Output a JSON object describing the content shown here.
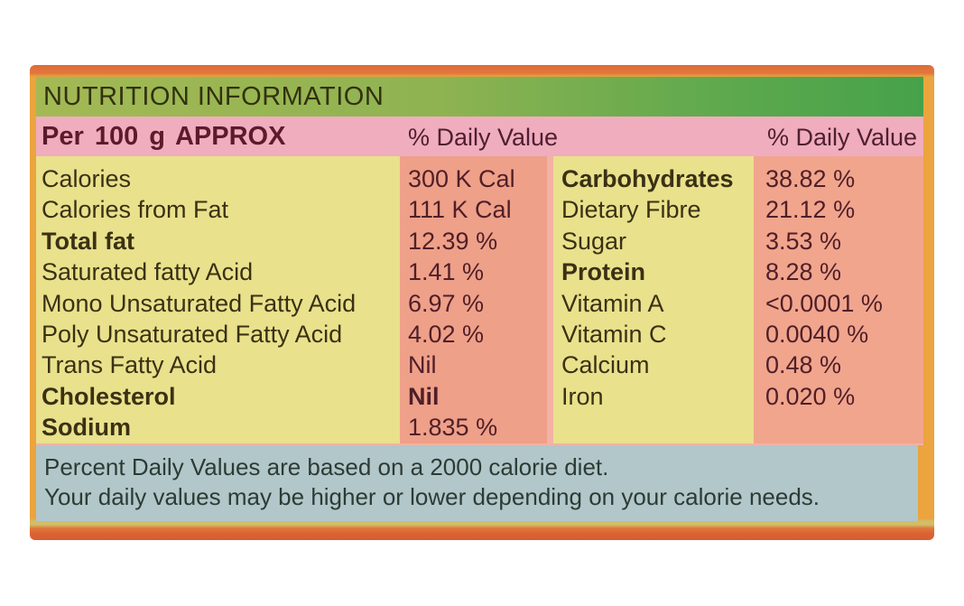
{
  "label": {
    "title": "NUTRITION INFORMATION",
    "serving": "Per 100 g APPROX",
    "daily_value_header_left": "% Daily Value",
    "daily_value_header_right": "% Daily Value",
    "left_rows": [
      {
        "name": "Calories",
        "value": "300 K Cal",
        "bold": false,
        "value_bold": false
      },
      {
        "name": "Calories from Fat",
        "value": "111 K Cal",
        "bold": false,
        "value_bold": false
      },
      {
        "name": "Total fat",
        "value": "12.39 %",
        "bold": true,
        "value_bold": false
      },
      {
        "name": "Saturated fatty Acid",
        "value": "1.41 %",
        "bold": false,
        "value_bold": false
      },
      {
        "name": "Mono Unsaturated Fatty Acid",
        "value": "6.97 %",
        "bold": false,
        "value_bold": false
      },
      {
        "name": "Poly Unsaturated Fatty Acid",
        "value": "4.02 %",
        "bold": false,
        "value_bold": false
      },
      {
        "name": "Trans Fatty Acid",
        "value": "Nil",
        "bold": false,
        "value_bold": false
      },
      {
        "name": "Cholesterol",
        "value": "Nil",
        "bold": true,
        "value_bold": true
      },
      {
        "name": "Sodium",
        "value": "1.835 %",
        "bold": true,
        "value_bold": false
      }
    ],
    "right_rows": [
      {
        "name": "Carbohydrates",
        "value": "38.82 %",
        "bold": true,
        "value_bold": false
      },
      {
        "name": "Dietary Fibre",
        "value": "21.12 %",
        "bold": false,
        "value_bold": false
      },
      {
        "name": "Sugar",
        "value": "3.53 %",
        "bold": false,
        "value_bold": false
      },
      {
        "name": "Protein",
        "value": "8.28 %",
        "bold": true,
        "value_bold": false
      },
      {
        "name": "Vitamin A",
        "value": "<0.0001 %",
        "bold": false,
        "value_bold": false
      },
      {
        "name": "Vitamin C",
        "value": "0.0040 %",
        "bold": false,
        "value_bold": false
      },
      {
        "name": "Calcium",
        "value": "0.48 %",
        "bold": false,
        "value_bold": false
      },
      {
        "name": "Iron",
        "value": "0.020 %",
        "bold": false,
        "value_bold": false
      }
    ],
    "footnote_line1": "Percent Daily Values are based on a 2000 calorie diet.",
    "footnote_line2": "Your daily values may be higher or lower depending on your calorie needs.",
    "colors": {
      "frame_orange": "#eba43e",
      "frame_top_red_orange": "#df6c39",
      "frame_bottom_red_orange": "#d85d31",
      "header_green_left": "#a3b954",
      "header_green_right": "#46a24a",
      "serving_pink": "#f0adbe",
      "names_yellow": "#e9e18c",
      "values_salmon": "#efa089",
      "footnote_blue": "#b1c7ca",
      "name_text": "#3a3114",
      "value_text": "#4f1f28",
      "serving_text": "#5b1b2c"
    }
  }
}
